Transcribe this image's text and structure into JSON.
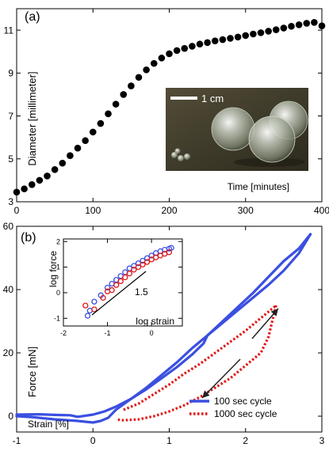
{
  "chart_data": [
    {
      "panel_label": "(a)",
      "type": "scatter",
      "xlabel": "Time [minutes]",
      "ylabel": "Diameter [millimeter]",
      "xlim": [
        0,
        400
      ],
      "ylim": [
        3,
        12
      ],
      "xticks": [
        0,
        100,
        200,
        300,
        400
      ],
      "yticks": [
        3,
        5,
        7,
        9,
        11
      ],
      "grid": false,
      "marker_color": "#000000",
      "series": [
        {
          "x": [
            0,
            10,
            20,
            30,
            40,
            50,
            60,
            70,
            80,
            90,
            100,
            110,
            120,
            130,
            140,
            150,
            160,
            170,
            180,
            190,
            200,
            210,
            220,
            230,
            240,
            250,
            260,
            270,
            280,
            290,
            300,
            310,
            320,
            330,
            340,
            350,
            360,
            370,
            380,
            390,
            400
          ],
          "y": [
            3.45,
            3.6,
            3.8,
            4.0,
            4.2,
            4.5,
            4.8,
            5.15,
            5.5,
            5.85,
            6.25,
            6.65,
            7.1,
            7.55,
            8.0,
            8.4,
            8.8,
            9.15,
            9.45,
            9.7,
            9.9,
            10.05,
            10.15,
            10.25,
            10.35,
            10.42,
            10.5,
            10.56,
            10.62,
            10.68,
            10.75,
            10.82,
            10.88,
            10.95,
            11.02,
            11.1,
            11.18,
            11.25,
            11.32,
            11.36,
            11.2
          ]
        }
      ],
      "inset_photo": {
        "scale_label": "1 cm"
      }
    },
    {
      "panel_label": "(b)",
      "type": "line",
      "xlabel": "Strain [%]",
      "ylabel": "Force [mN]",
      "xlim": [
        -1,
        3
      ],
      "ylim": [
        -5,
        60
      ],
      "xticks": [
        -1,
        0,
        1,
        2,
        3
      ],
      "yticks": [
        0,
        20,
        40,
        60
      ],
      "grid": false,
      "legend_position": "bottom-right",
      "series": [
        {
          "name": "100 sec cycle",
          "color": "#3b4fe0",
          "style": "solid",
          "loading": {
            "x": [
              -1,
              -0.7,
              -0.5,
              -0.3,
              -0.2,
              0,
              0.15,
              0.3,
              0.5,
              0.7,
              0.9,
              1.1,
              1.3,
              1.45,
              1.5,
              1.7,
              1.9,
              2.1,
              2.3,
              2.5,
              2.7,
              2.85
            ],
            "y": [
              0.5,
              0.6,
              0.4,
              0.3,
              -0.2,
              0.5,
              1.5,
              3,
              5.5,
              8.5,
              12,
              15.5,
              19.5,
              23,
              25.5,
              30,
              34.5,
              39,
              44,
              49,
              53,
              57.5
            ]
          },
          "unloading": {
            "x": [
              2.85,
              2.7,
              2.5,
              2.3,
              2.1,
              1.9,
              1.7,
              1.5,
              1.3,
              1.1,
              0.9,
              0.7,
              0.5,
              0.3,
              0.2,
              0.1,
              0,
              -0.2,
              -0.5,
              -0.8,
              -1
            ],
            "y": [
              57.5,
              51.5,
              46,
              41.5,
              37.5,
              33.5,
              29.5,
              25.5,
              21.5,
              17,
              13,
              9,
              5.5,
              2,
              -0.5,
              -1.5,
              -2,
              -1.5,
              -1,
              -0.3,
              0
            ]
          }
        },
        {
          "name": "1000 sec cycle",
          "color": "#e01818",
          "style": "dotted",
          "loading": {
            "x": [
              0.4,
              0.6,
              0.8,
              1.0,
              1.2,
              1.4,
              1.6,
              1.8,
              2.0,
              2.2,
              2.4
            ],
            "y": [
              2,
              4,
              7,
              10,
              13.5,
              16.5,
              20,
              23.5,
              27,
              31,
              35
            ]
          },
          "unloading": {
            "x": [
              2.4,
              2.35,
              2.3,
              2.2,
              2.0,
              1.8,
              1.6,
              1.4,
              1.2,
              1.0,
              0.8,
              0.6,
              0.4,
              0.3
            ],
            "y": [
              35,
              30,
              25,
              20,
              16,
              12,
              9,
              6,
              3.5,
              1.5,
              0,
              -1,
              -1.3,
              -1
            ]
          }
        }
      ],
      "inset": {
        "xlabel": "log strain",
        "ylabel": "log force",
        "xlim": [
          -2,
          0.7
        ],
        "ylim": [
          -1.3,
          2.1
        ],
        "xticks": [
          -2,
          -1,
          0
        ],
        "yticks": [
          -1,
          0,
          1,
          2
        ],
        "slope_label": "1.5",
        "series": [
          {
            "name": "100 sec cycle",
            "color": "#3b4fe0",
            "x": [
              -1.45,
              -1.4,
              -1.3,
              -1.15,
              -1.0,
              -0.9,
              -0.8,
              -0.7,
              -0.6,
              -0.5,
              -0.4,
              -0.3,
              -0.2,
              -0.1,
              0,
              0.1,
              0.2,
              0.3,
              0.4,
              0.45
            ],
            "y": [
              -0.9,
              -0.7,
              -0.35,
              -0.1,
              0.2,
              0.35,
              0.5,
              0.65,
              0.8,
              0.95,
              1.05,
              1.15,
              1.25,
              1.35,
              1.45,
              1.55,
              1.62,
              1.68,
              1.72,
              1.75
            ]
          },
          {
            "name": "1000 sec cycle",
            "color": "#e01818",
            "x": [
              -1.5,
              -1.3,
              -1.1,
              -1.0,
              -0.9,
              -0.8,
              -0.7,
              -0.6,
              -0.5,
              -0.4,
              -0.3,
              -0.2,
              -0.1,
              0,
              0.1,
              0.2,
              0.3,
              0.4
            ],
            "y": [
              -0.5,
              -0.65,
              -0.2,
              0.05,
              0.1,
              0.3,
              0.45,
              0.6,
              0.75,
              0.9,
              1.0,
              1.1,
              1.2,
              1.3,
              1.38,
              1.45,
              1.52,
              1.58
            ]
          }
        ]
      }
    }
  ]
}
